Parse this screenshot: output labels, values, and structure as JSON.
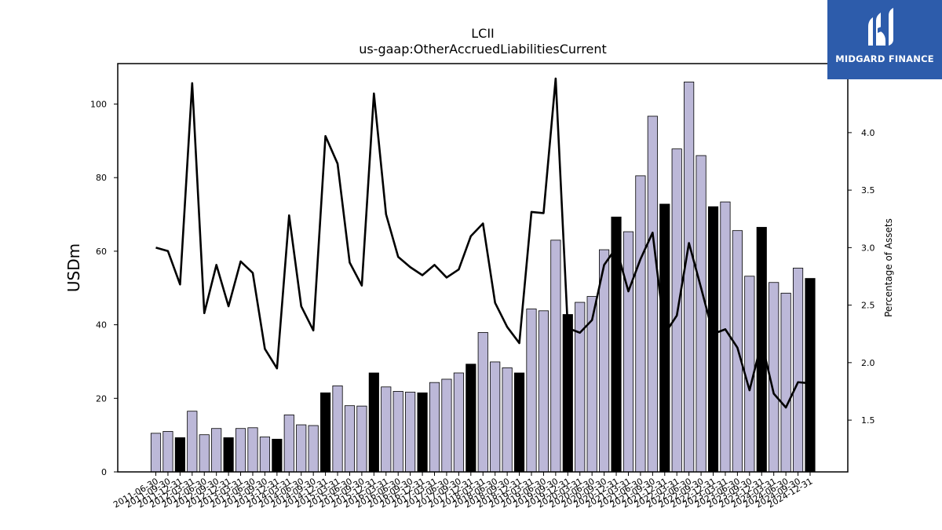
{
  "chart_data": {
    "type": "bar",
    "title": "LCII",
    "subtitle": "us-gaap:OtherAccruedLiabilitiesCurrent",
    "ylabel": "USDm",
    "y2label": "Percentage of Assets",
    "ylim": [
      0,
      111
    ],
    "y2lim": [
      1.05,
      4.6
    ],
    "yticks": [
      0,
      20,
      40,
      60,
      80,
      100
    ],
    "y2ticks": [
      1.5,
      2.0,
      2.5,
      3.0,
      3.5,
      4.0
    ],
    "bar_color": "#bcb8d8",
    "highlight_color": "#000000",
    "line_color": "#000000",
    "categories": [
      "2011-06-30",
      "2011-09-30",
      "2011-12-31",
      "2012-03-31",
      "2012-06-30",
      "2012-09-30",
      "2012-12-31",
      "2013-03-31",
      "2013-06-30",
      "2013-09-30",
      "2013-12-31",
      "2014-03-31",
      "2014-06-30",
      "2014-09-30",
      "2014-12-31",
      "2015-03-31",
      "2015-06-30",
      "2015-09-30",
      "2015-12-31",
      "2016-03-31",
      "2016-06-30",
      "2016-09-30",
      "2016-12-31",
      "2017-03-31",
      "2017-06-30",
      "2017-09-30",
      "2017-12-31",
      "2018-03-31",
      "2018-06-30",
      "2018-09-30",
      "2018-12-31",
      "2019-03-31",
      "2019-06-30",
      "2019-09-30",
      "2019-12-31",
      "2020-03-31",
      "2020-06-30",
      "2020-09-30",
      "2020-12-31",
      "2021-03-31",
      "2021-06-30",
      "2021-09-30",
      "2021-12-31",
      "2022-03-31",
      "2022-06-30",
      "2022-09-30",
      "2022-12-31",
      "2023-03-31",
      "2023-06-30",
      "2023-09-30",
      "2023-12-31",
      "2024-03-31",
      "2024-06-30",
      "2024-09-30",
      "2024-12-31"
    ],
    "values": [
      10.5,
      11.0,
      9.3,
      16.5,
      10.1,
      11.8,
      9.3,
      11.8,
      12.0,
      9.5,
      8.9,
      15.5,
      12.8,
      12.6,
      21.5,
      23.4,
      18.0,
      17.9,
      26.9,
      23.1,
      21.9,
      21.7,
      21.5,
      24.3,
      25.2,
      26.9,
      29.3,
      37.9,
      29.9,
      28.3,
      26.9,
      44.3,
      43.8,
      63.0,
      42.8,
      46.1,
      47.7,
      60.4,
      69.3,
      65.3,
      80.5,
      96.7,
      72.8,
      87.8,
      106.0,
      86.0,
      72.1,
      73.4,
      65.6,
      53.2,
      66.5,
      51.5,
      48.6,
      55.4,
      52.6
    ],
    "highlighted": [
      false,
      false,
      true,
      false,
      false,
      false,
      true,
      false,
      false,
      false,
      true,
      false,
      false,
      false,
      true,
      false,
      false,
      false,
      true,
      false,
      false,
      false,
      true,
      false,
      false,
      false,
      true,
      false,
      false,
      false,
      true,
      false,
      false,
      false,
      true,
      false,
      false,
      false,
      true,
      false,
      false,
      false,
      true,
      false,
      false,
      false,
      true,
      false,
      false,
      false,
      true,
      false,
      false,
      false,
      true
    ],
    "pct_of_assets": [
      3.0,
      2.97,
      2.68,
      4.43,
      2.43,
      2.85,
      2.49,
      2.88,
      2.78,
      2.12,
      1.95,
      3.28,
      2.49,
      2.28,
      3.97,
      3.73,
      2.87,
      2.67,
      4.34,
      3.29,
      2.92,
      2.83,
      2.76,
      2.85,
      2.74,
      2.81,
      3.1,
      3.21,
      2.52,
      2.31,
      2.17,
      3.31,
      3.3,
      4.47,
      2.3,
      2.26,
      2.37,
      2.85,
      3.0,
      2.62,
      2.9,
      3.13,
      2.25,
      2.41,
      3.04,
      2.65,
      2.25,
      2.29,
      2.13,
      1.76,
      2.18,
      1.73,
      1.61,
      1.83,
      1.82
    ]
  },
  "logo": {
    "text": "MIDGARD FINANCE",
    "bg_color": "#2d5cab"
  }
}
